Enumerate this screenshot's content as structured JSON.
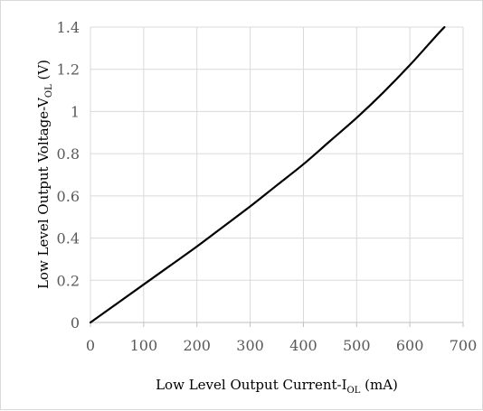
{
  "chart_data": {
    "type": "line",
    "title": "",
    "xlabel": {
      "main": "Low Level Output Current-I",
      "sub": "OL",
      "unit": " (mA)"
    },
    "ylabel": {
      "main": "Low Level Output Voltage-V",
      "sub": "OL",
      "unit": " (V)"
    },
    "xlim": [
      0,
      700
    ],
    "ylim": [
      0,
      1.4
    ],
    "x_ticks": [
      "0",
      "100",
      "200",
      "300",
      "400",
      "500",
      "600",
      "700"
    ],
    "y_ticks": [
      "0",
      "0.2",
      "0.4",
      "0.6",
      "0.8",
      "1",
      "1.2",
      "1.4"
    ],
    "grid": true,
    "legend": "none",
    "line_color": "#000000",
    "series": [
      {
        "x": [
          0,
          50,
          100,
          150,
          200,
          250,
          300,
          350,
          400,
          450,
          500,
          550,
          600,
          650,
          665
        ],
        "values": [
          0,
          0.09,
          0.18,
          0.27,
          0.36,
          0.455,
          0.55,
          0.65,
          0.75,
          0.86,
          0.97,
          1.09,
          1.22,
          1.36,
          1.4
        ]
      }
    ]
  }
}
